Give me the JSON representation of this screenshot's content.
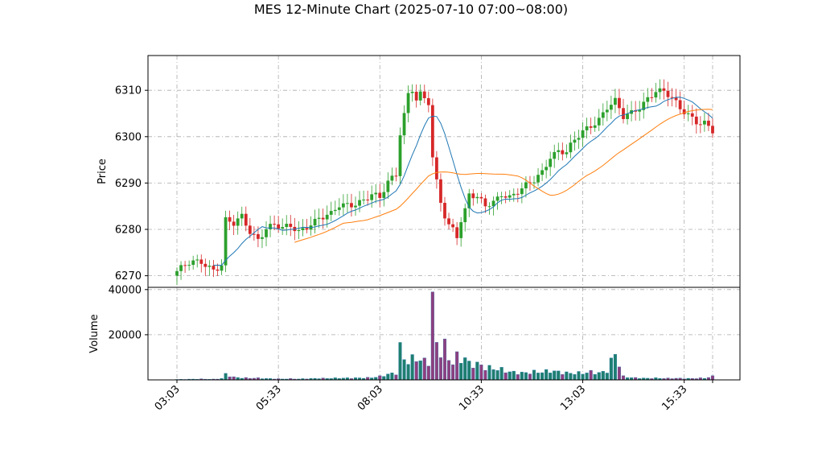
{
  "title": "MES 12-Minute Chart (2025-07-10 07:00~08:00)",
  "colors": {
    "up": "#2ca02c",
    "down": "#d62728",
    "ma_fast": "#1f77b4",
    "ma_slow": "#ff7f0e",
    "grid": "#aaaaaa"
  },
  "chart_data": {
    "type": "candlestick",
    "price_panel": {
      "ylabel": "Price",
      "ylim": [
        6267.5,
        6317.5
      ],
      "yticks": [
        "6270",
        "6280",
        "6290",
        "6300",
        "6310"
      ],
      "grid": true
    },
    "volume_panel": {
      "ylabel": "Volume",
      "ylim": [
        0,
        41000
      ],
      "yticks": [
        "20000",
        "40000"
      ],
      "grid": true
    },
    "xticks": [
      "03:03",
      "05:33",
      "08:03",
      "10:33",
      "13:03",
      "15:33"
    ],
    "anchors": [
      [
        0,
        6271.0,
        200
      ],
      [
        3,
        6272.5,
        300
      ],
      [
        6,
        6273.0,
        400
      ],
      [
        9,
        6271.5,
        300
      ],
      [
        11,
        6272.5,
        600
      ],
      [
        12,
        6282.0,
        2500
      ],
      [
        14,
        6281.0,
        1200
      ],
      [
        16,
        6282.5,
        900
      ],
      [
        18,
        6279.5,
        800
      ],
      [
        20,
        6278.0,
        800
      ],
      [
        22,
        6280.5,
        600
      ],
      [
        24,
        6281.0,
        500
      ],
      [
        26,
        6280.0,
        400
      ],
      [
        28,
        6280.5,
        500
      ],
      [
        30,
        6279.5,
        400
      ],
      [
        33,
        6281.5,
        600
      ],
      [
        35,
        6282.5,
        700
      ],
      [
        38,
        6283.0,
        700
      ],
      [
        40,
        6285.0,
        800
      ],
      [
        43,
        6285.5,
        800
      ],
      [
        46,
        6286.5,
        900
      ],
      [
        48,
        6287.5,
        1000
      ],
      [
        50,
        6286.5,
        1500
      ],
      [
        52,
        6290.0,
        2500
      ],
      [
        54,
        6292.0,
        3000
      ],
      [
        55,
        6301.0,
        14000
      ],
      [
        56,
        6305.0,
        9000
      ],
      [
        57,
        6309.5,
        8500
      ],
      [
        58,
        6310.5,
        9000
      ],
      [
        59,
        6308.0,
        9500
      ],
      [
        60,
        6309.0,
        9000
      ],
      [
        61,
        6308.0,
        8000
      ],
      [
        62,
        6307.0,
        8000
      ],
      [
        63,
        6295.0,
        21000
      ],
      [
        64,
        6290.0,
        15000
      ],
      [
        65,
        6286.0,
        13000
      ],
      [
        66,
        6283.0,
        15000
      ],
      [
        67,
        6281.0,
        9000
      ],
      [
        68,
        6280.5,
        8000
      ],
      [
        69,
        6279.0,
        10000
      ],
      [
        70,
        6282.0,
        9000
      ],
      [
        71,
        6284.0,
        10000
      ],
      [
        72,
        6287.5,
        7000
      ],
      [
        74,
        6286.5,
        7000
      ],
      [
        76,
        6285.0,
        5500
      ],
      [
        78,
        6286.0,
        5000
      ],
      [
        80,
        6288.0,
        4500
      ],
      [
        82,
        6287.0,
        3500
      ],
      [
        85,
        6288.5,
        3000
      ],
      [
        88,
        6290.5,
        3500
      ],
      [
        90,
        6292.5,
        3500
      ],
      [
        92,
        6296.0,
        4000
      ],
      [
        94,
        6297.0,
        3500
      ],
      [
        96,
        6296.5,
        3000
      ],
      [
        98,
        6299.0,
        3000
      ],
      [
        100,
        6301.0,
        3000
      ],
      [
        102,
        6302.5,
        3500
      ],
      [
        104,
        6304.0,
        3000
      ],
      [
        106,
        6306.5,
        4000
      ],
      [
        108,
        6307.5,
        12000
      ],
      [
        110,
        6304.0,
        1500
      ],
      [
        112,
        6305.0,
        1000
      ],
      [
        114,
        6306.5,
        800
      ],
      [
        116,
        6308.5,
        700
      ],
      [
        118,
        6310.0,
        800
      ],
      [
        120,
        6309.5,
        700
      ],
      [
        122,
        6308.0,
        700
      ],
      [
        124,
        6306.0,
        700
      ],
      [
        126,
        6305.0,
        600
      ],
      [
        128,
        6303.5,
        700
      ],
      [
        130,
        6303.0,
        800
      ],
      [
        132,
        6301.0,
        1500
      ]
    ],
    "ma_fast_start": 9,
    "ma_fast_window": 10,
    "ma_slow_start": 29,
    "ma_slow_window": 30
  }
}
